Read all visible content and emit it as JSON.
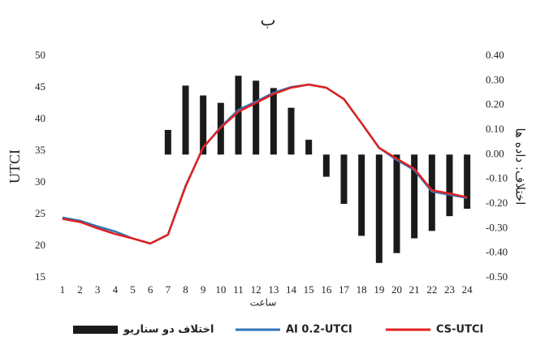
{
  "chart_data": {
    "type": "combo",
    "title": "ب",
    "x_label": "ساعت",
    "y_label": "UTCI",
    "y2_label": "اختلاف: داده ها",
    "categories": [
      "1",
      "2",
      "3",
      "4",
      "5",
      "6",
      "7",
      "8",
      "9",
      "10",
      "11",
      "12",
      "13",
      "14",
      "15",
      "16",
      "17",
      "18",
      "19",
      "20",
      "21",
      "22",
      "23",
      "24"
    ],
    "ylim": [
      15,
      50
    ],
    "yticks": [
      15,
      20,
      25,
      30,
      35,
      40,
      45,
      50
    ],
    "y2lim": [
      -0.5,
      0.4
    ],
    "y2ticks": [
      {
        "value": -0.5,
        "label": "-0.50"
      },
      {
        "value": -0.4,
        "label": "-0.40"
      },
      {
        "value": -0.3,
        "label": "-0.30"
      },
      {
        "value": -0.2,
        "label": "-0.20"
      },
      {
        "value": -0.1,
        "label": "-0.10"
      },
      {
        "value": 0,
        "label": "0.00"
      },
      {
        "value": 0.1,
        "label": "0.10"
      },
      {
        "value": 0.2,
        "label": "0.20"
      },
      {
        "value": 0.3,
        "label": "0.30"
      },
      {
        "value": 0.4,
        "label": "0.40"
      }
    ],
    "series": [
      {
        "name": "اختلاف دو سناریو",
        "type": "bar",
        "axis": "y2",
        "color": "#1a1a1a",
        "values": [
          null,
          null,
          null,
          null,
          null,
          null,
          0.1,
          0.28,
          0.24,
          0.21,
          0.32,
          0.3,
          0.27,
          0.19,
          0.06,
          -0.09,
          -0.2,
          -0.33,
          -0.44,
          -0.4,
          -0.34,
          -0.31,
          -0.25,
          -0.22
        ]
      },
      {
        "name": "AI 0.2-UTCI",
        "type": "line",
        "color": "#2e75b6",
        "values": [
          24.5,
          24.0,
          23.1,
          22.3,
          21.2,
          20.4,
          21.8,
          29.5,
          35.5,
          38.8,
          41.5,
          42.8,
          44.2,
          45.1,
          45.5,
          45.0,
          43.2,
          39.4,
          35.5,
          33.6,
          32.0,
          28.6,
          28.1,
          27.6
        ]
      },
      {
        "name": "CS-UTCI",
        "type": "line",
        "color": "#e02020",
        "values": [
          24.3,
          23.8,
          22.8,
          21.9,
          21.2,
          20.4,
          21.8,
          29.4,
          35.6,
          38.7,
          41.2,
          42.6,
          44.0,
          45.0,
          45.5,
          45.0,
          43.2,
          39.4,
          35.5,
          33.8,
          32.2,
          28.8,
          28.3,
          27.7
        ]
      }
    ]
  }
}
